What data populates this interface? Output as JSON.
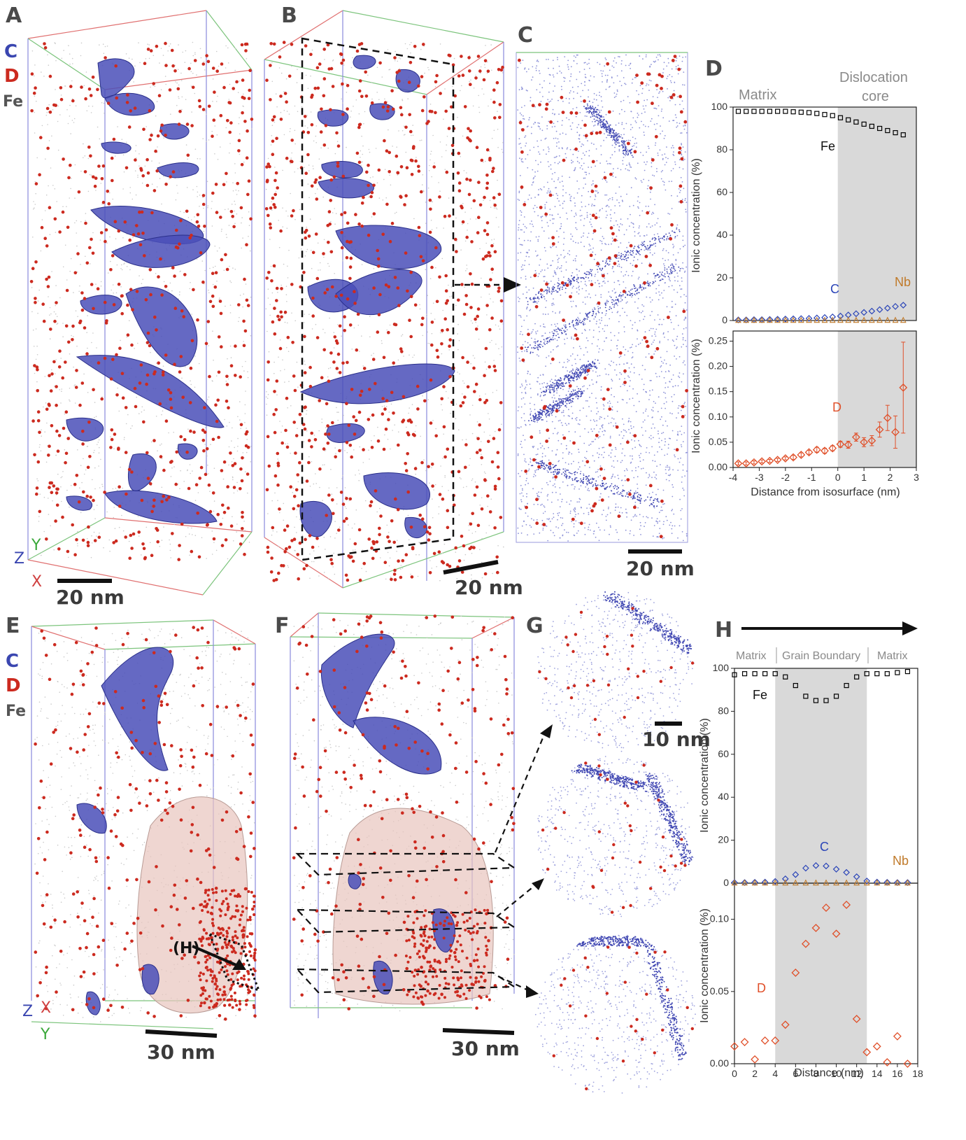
{
  "panels": {
    "A": "A",
    "B": "B",
    "C": "C",
    "D": "D",
    "E": "E",
    "F": "F",
    "G": "G",
    "H": "H"
  },
  "legend": {
    "c": "C",
    "d": "D",
    "fe": "Fe"
  },
  "axes_labels": {
    "z": "Z",
    "y": "Y",
    "x": "X"
  },
  "scale_bars": {
    "a": "20 nm",
    "b": "20 nm",
    "c": "20 nm",
    "e": "30 nm",
    "f": "30 nm",
    "g": "10 nm"
  },
  "marker_H": "(H)",
  "colors": {
    "carbon": "#4a4fb8",
    "deuterium": "#cc2a1f",
    "iron": "#9a9a9a",
    "grain_boundary": "#e8c4be",
    "core_shade": "#d9d9d9",
    "fe_marker": "#000000",
    "c_marker": "#2b45b8",
    "nb_marker": "#c07a2a",
    "d_marker": "#e0502a"
  },
  "chart_data": [
    {
      "type": "scatter",
      "panel": "D",
      "regions": [
        "Matrix",
        "Dislocation",
        "core"
      ],
      "shaded_from": 0,
      "xlabel": "Distance from isosurface (nm)",
      "xlim": [
        -4,
        3
      ],
      "xticks": [
        -4,
        -3,
        -2,
        -1,
        0,
        1,
        2,
        3
      ],
      "top": {
        "ylabel": "Ionic concentration (%)",
        "ylim": [
          0,
          100
        ],
        "yticks": [
          0,
          20,
          40,
          60,
          80,
          100
        ],
        "series": [
          {
            "name": "Fe",
            "x": [
              -3.8,
              -3.5,
              -3.2,
              -2.9,
              -2.6,
              -2.3,
              -2.0,
              -1.7,
              -1.4,
              -1.1,
              -0.8,
              -0.5,
              -0.2,
              0.1,
              0.4,
              0.7,
              1.0,
              1.3,
              1.6,
              1.9,
              2.2,
              2.5
            ],
            "y": [
              98,
              98,
              98,
              98,
              98,
              98,
              98,
              97.8,
              97.6,
              97.4,
              97,
              96.5,
              96,
              95,
              94,
              93,
              92,
              91,
              90,
              89,
              88,
              87
            ]
          },
          {
            "name": "C",
            "x": [
              -3.8,
              -3.5,
              -3.2,
              -2.9,
              -2.6,
              -2.3,
              -2.0,
              -1.7,
              -1.4,
              -1.1,
              -0.8,
              -0.5,
              -0.2,
              0.1,
              0.4,
              0.7,
              1.0,
              1.3,
              1.6,
              1.9,
              2.2,
              2.5
            ],
            "y": [
              0.3,
              0.3,
              0.4,
              0.4,
              0.5,
              0.6,
              0.7,
              0.8,
              0.9,
              1.0,
              1.2,
              1.4,
              1.7,
              2.1,
              2.6,
              3.2,
              3.8,
              4.4,
              5.1,
              5.8,
              6.6,
              7.2
            ]
          },
          {
            "name": "Nb",
            "x": [
              -3.8,
              -3.5,
              -3.2,
              -2.9,
              -2.6,
              -2.3,
              -2.0,
              -1.7,
              -1.4,
              -1.1,
              -0.8,
              -0.5,
              -0.2,
              0.1,
              0.4,
              0.7,
              1.0,
              1.3,
              1.6,
              1.9,
              2.2,
              2.5
            ],
            "y": [
              0.1,
              0.1,
              0.1,
              0.1,
              0.1,
              0.1,
              0.1,
              0.1,
              0.1,
              0.1,
              0.1,
              0.1,
              0.1,
              0.1,
              0.1,
              0.1,
              0.1,
              0.1,
              0.1,
              0.1,
              0.1,
              0.1
            ]
          }
        ]
      },
      "bottom": {
        "ylabel": "Ionic concentration (%)",
        "ylim": [
          0,
          0.27
        ],
        "yticks": [
          0.0,
          0.05,
          0.1,
          0.15,
          0.2,
          0.25
        ],
        "ytick_labels": [
          "0.00",
          "0.05",
          "0.10",
          "0.15",
          "0.20",
          "0.25"
        ],
        "series": [
          {
            "name": "D",
            "x": [
              -3.8,
              -3.5,
              -3.2,
              -2.9,
              -2.6,
              -2.3,
              -2.0,
              -1.7,
              -1.4,
              -1.1,
              -0.8,
              -0.5,
              -0.2,
              0.1,
              0.4,
              0.7,
              1.0,
              1.3,
              1.6,
              1.9,
              2.2,
              2.5
            ],
            "y": [
              0.008,
              0.008,
              0.01,
              0.012,
              0.013,
              0.015,
              0.018,
              0.02,
              0.025,
              0.03,
              0.035,
              0.033,
              0.038,
              0.046,
              0.045,
              0.06,
              0.05,
              0.053,
              0.075,
              0.098,
              0.07,
              0.158
            ],
            "err": [
              0.003,
              0.003,
              0.003,
              0.003,
              0.003,
              0.003,
              0.003,
              0.004,
              0.004,
              0.004,
              0.005,
              0.005,
              0.005,
              0.006,
              0.007,
              0.008,
              0.009,
              0.01,
              0.015,
              0.025,
              0.032,
              0.09
            ]
          }
        ]
      }
    },
    {
      "type": "scatter",
      "panel": "H",
      "regions": [
        "Matrix",
        "Grain Boundary",
        "Matrix"
      ],
      "shaded_from": 4,
      "shaded_to": 13,
      "xlabel": "Distance (nm)",
      "xlim": [
        0,
        18
      ],
      "xticks": [
        0,
        2,
        4,
        6,
        8,
        10,
        12,
        14,
        16,
        18
      ],
      "top": {
        "ylabel": "Ionic concentration (%)",
        "ylim": [
          0,
          100
        ],
        "yticks": [
          0,
          20,
          40,
          60,
          80,
          100
        ],
        "series": [
          {
            "name": "Fe",
            "x": [
              0,
              1,
              2,
              3,
              4,
              5,
              6,
              7,
              8,
              9,
              10,
              11,
              12,
              13,
              14,
              15,
              16,
              17
            ],
            "y": [
              97,
              97.5,
              97.5,
              97.5,
              97.5,
              96,
              92,
              87,
              85,
              85,
              87,
              92,
              96,
              97.5,
              97.5,
              97.5,
              98,
              98.5
            ]
          },
          {
            "name": "C",
            "x": [
              0,
              1,
              2,
              3,
              4,
              5,
              6,
              7,
              8,
              9,
              10,
              11,
              12,
              13,
              14,
              15,
              16,
              17
            ],
            "y": [
              0.3,
              0.3,
              0.4,
              0.5,
              0.8,
              2.0,
              4.0,
              7.0,
              8.2,
              8.0,
              6.5,
              5.0,
              3.0,
              1.0,
              0.5,
              0.4,
              0.3,
              0.3
            ]
          },
          {
            "name": "Nb",
            "x": [
              0,
              1,
              2,
              3,
              4,
              5,
              6,
              7,
              8,
              9,
              10,
              11,
              12,
              13,
              14,
              15,
              16,
              17
            ],
            "y": [
              0.1,
              0.1,
              0.1,
              0.1,
              0.1,
              0.1,
              0.1,
              0.1,
              0.1,
              0.1,
              0.1,
              0.1,
              0.1,
              0.1,
              0.1,
              0.1,
              0.1,
              0.1
            ]
          }
        ]
      },
      "bottom": {
        "ylabel": "Ionic concentration (%)",
        "ylim": [
          0,
          0.125
        ],
        "yticks": [
          0.0,
          0.05,
          0.1
        ],
        "ytick_labels": [
          "0.00",
          "0.05",
          "0.10"
        ],
        "series": [
          {
            "name": "D",
            "x": [
              0,
              1,
              2,
              3,
              4,
              5,
              6,
              7,
              8,
              9,
              10,
              11,
              12,
              13,
              14,
              15,
              16,
              17
            ],
            "y": [
              0.012,
              0.015,
              0.003,
              0.016,
              0.016,
              0.027,
              0.063,
              0.083,
              0.094,
              0.108,
              0.09,
              0.11,
              0.031,
              0.008,
              0.012,
              0.001,
              0.019,
              0.0
            ]
          }
        ]
      }
    }
  ]
}
